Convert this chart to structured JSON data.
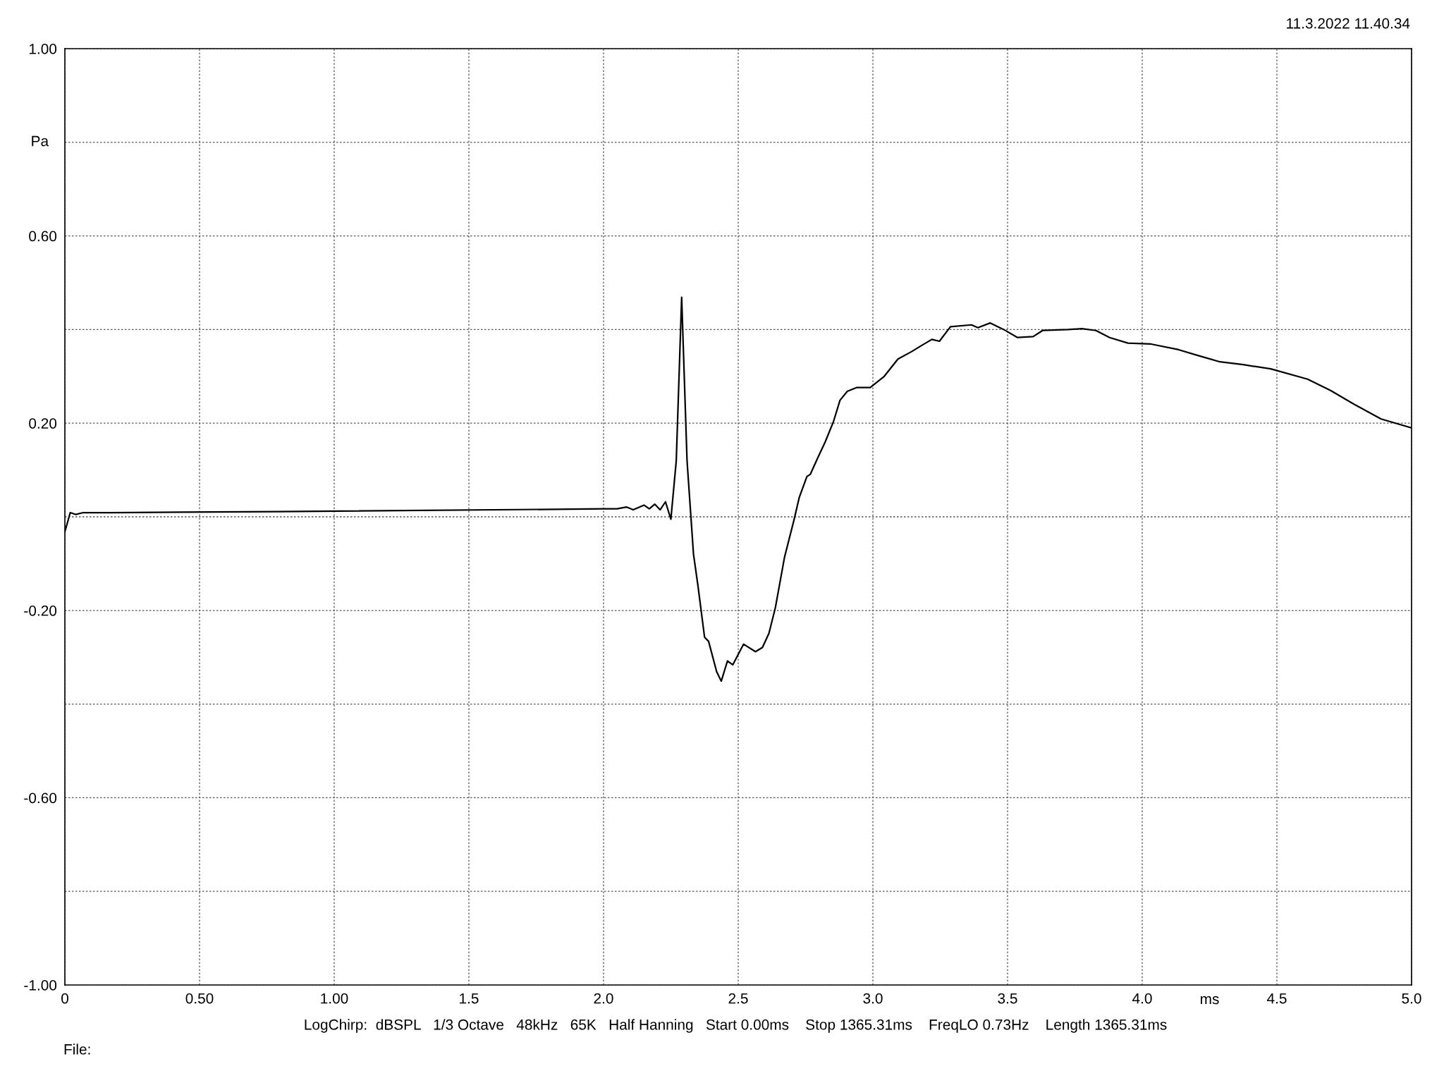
{
  "chart_data": {
    "type": "line",
    "xlabel": "ms",
    "ylabel": "Pa",
    "annotations": [
      "11.3.2022 11.40.34",
      "LogChirp:  dBSPL   1/3 Octave   48kHz   65K   Half Hanning   Start 0.00ms    Stop 1365.31ms    FreqLO 0.73Hz    Length 1365.31ms",
      "File:"
    ],
    "xlim": [
      0,
      5.0
    ],
    "ylim": [
      -1.0,
      1.0
    ],
    "xticks": [
      0,
      {
        "value": 0.5,
        "label": "0.50"
      },
      {
        "value": 1.0,
        "label": "1.00"
      },
      1.5,
      {
        "value": 2.0,
        "label": "2.0"
      },
      2.5,
      {
        "value": 3.0,
        "label": "3.0"
      },
      3.5,
      {
        "value": 4.0,
        "label": "4.0"
      },
      4.5,
      {
        "value": 5.0,
        "label": "5.0"
      }
    ],
    "yticks": [
      {
        "value": -1.0,
        "label": "-1.00"
      },
      {
        "value": -0.8,
        "label": null
      },
      {
        "value": -0.6,
        "label": "-0.60"
      },
      {
        "value": -0.4,
        "label": null
      },
      {
        "value": -0.2,
        "label": "-0.20"
      },
      {
        "value": 0,
        "label": null
      },
      {
        "value": 0.2,
        "label": "0.20"
      },
      {
        "value": 0.4,
        "label": null
      },
      {
        "value": 0.6,
        "label": "0.60"
      },
      {
        "value": 0.8,
        "label": null
      },
      {
        "value": 1.0,
        "label": "1.00"
      }
    ],
    "grid": true,
    "line_style": "solid",
    "marker": "none",
    "legend": false,
    "series": [
      {
        "color": "#000000",
        "x": [
          0,
          0.02,
          0.041,
          0.068,
          0.17,
          0.79,
          2.0,
          2.05,
          2.085,
          2.11,
          2.15,
          2.17,
          2.19,
          2.21,
          2.23,
          2.25,
          2.27,
          2.29,
          2.31,
          2.334,
          2.35,
          2.375,
          2.39,
          2.42,
          2.437,
          2.46,
          2.48,
          2.52,
          2.564,
          2.59,
          2.614,
          2.638,
          2.672,
          2.707,
          2.727,
          2.755,
          2.768,
          2.796,
          2.823,
          2.854,
          2.878,
          2.905,
          2.939,
          2.99,
          3.042,
          3.093,
          3.144,
          3.178,
          3.219,
          3.247,
          3.288,
          3.366,
          3.39,
          3.435,
          3.486,
          3.537,
          3.595,
          3.63,
          3.725,
          3.776,
          3.828,
          3.879,
          3.947,
          4.033,
          4.135,
          4.204,
          4.289,
          4.375,
          4.477,
          4.614,
          4.699,
          4.785,
          4.887,
          5.0
        ],
        "values": [
          -0.032,
          0.009,
          0.005,
          0.009,
          0.009,
          0.011,
          0.017,
          0.017,
          0.021,
          0.015,
          0.025,
          0.017,
          0.027,
          0.015,
          0.032,
          -0.005,
          0.12,
          0.469,
          0.12,
          -0.08,
          -0.145,
          -0.257,
          -0.266,
          -0.331,
          -0.351,
          -0.308,
          -0.316,
          -0.272,
          -0.288,
          -0.279,
          -0.249,
          -0.194,
          -0.086,
          -0.007,
          0.042,
          0.086,
          0.091,
          0.127,
          0.16,
          0.204,
          0.249,
          0.268,
          0.276,
          0.276,
          0.3,
          0.337,
          0.353,
          0.365,
          0.379,
          0.375,
          0.406,
          0.41,
          0.404,
          0.414,
          0.4,
          0.383,
          0.385,
          0.398,
          0.4,
          0.402,
          0.398,
          0.383,
          0.371,
          0.369,
          0.357,
          0.345,
          0.331,
          0.325,
          0.316,
          0.294,
          0.27,
          0.241,
          0.209,
          0.19
        ]
      }
    ]
  }
}
